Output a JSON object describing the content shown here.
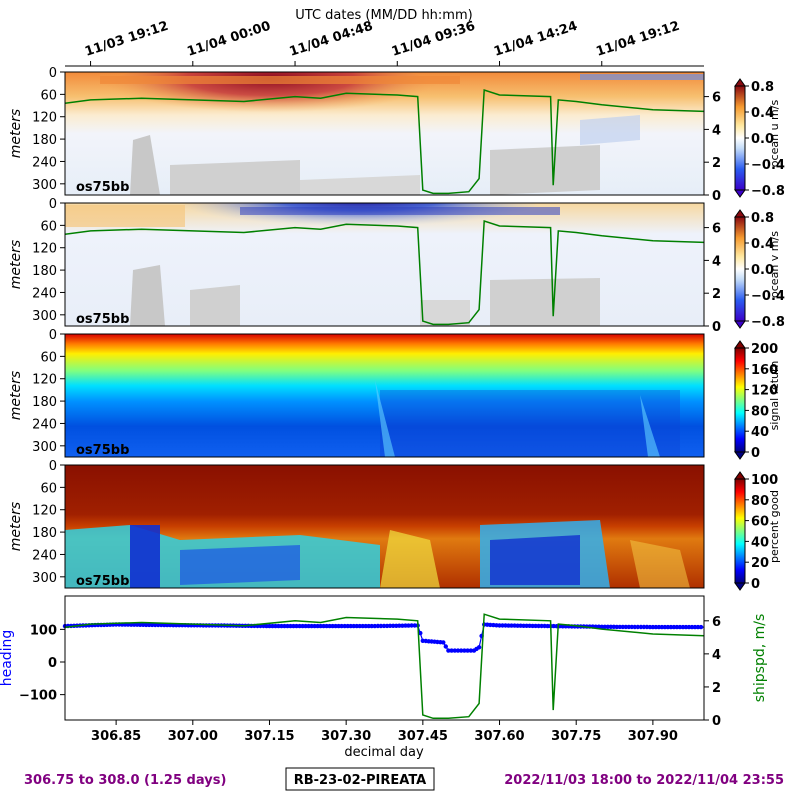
{
  "chart_data": {
    "top_axis_label": "UTC dates (MM/DD hh:mm)",
    "top_ticks": [
      {
        "x": 306.8,
        "label": "11/03 19:12"
      },
      {
        "x": 307.0,
        "label": "11/04 00:00"
      },
      {
        "x": 307.2,
        "label": "11/04 04:48"
      },
      {
        "x": 307.4,
        "label": "11/04 09:36"
      },
      {
        "x": 307.6,
        "label": "11/04 14:24"
      },
      {
        "x": 307.8,
        "label": "11/04 19:12"
      }
    ],
    "xlim": [
      306.75,
      308.0
    ],
    "x_ticks": [
      306.85,
      307.0,
      307.15,
      307.3,
      307.45,
      307.6,
      307.75,
      307.9
    ],
    "x_tick_labels": [
      "306.85",
      "307.00",
      "307.15",
      "307.30",
      "307.45",
      "307.60",
      "307.75",
      "307.90"
    ],
    "xlabel": "decimal day",
    "depth_ticks": [
      "0",
      "60",
      "120",
      "180",
      "240",
      "300"
    ],
    "depth_label": "meters",
    "panels": [
      {
        "type": "heatmap",
        "inset_label": "os75bb",
        "colorbar_label": "ocean u m/s",
        "colormap": "red-yellow-white-blue",
        "clim": [
          -0.8,
          0.8
        ],
        "colorbar_ticks": [
          "0.8",
          "0.4",
          "0.0",
          "−0.4",
          "−0.8"
        ],
        "overlay_axis_ticks": [
          "6",
          "4",
          "2",
          "0"
        ],
        "overlay_color": "#008000"
      },
      {
        "type": "heatmap",
        "inset_label": "os75bb",
        "colorbar_label": "ocean v m/s",
        "colormap": "red-yellow-white-blue",
        "clim": [
          -0.8,
          0.8
        ],
        "colorbar_ticks": [
          "0.8",
          "0.4",
          "0.0",
          "−0.4",
          "−0.8"
        ],
        "overlay_axis_ticks": [
          "6",
          "4",
          "2",
          "0"
        ],
        "overlay_color": "#008000"
      },
      {
        "type": "heatmap",
        "inset_label": "os75bb",
        "colorbar_label": "signal return",
        "colormap": "jet",
        "clim": [
          0,
          200
        ],
        "colorbar_ticks": [
          "200",
          "160",
          "120",
          "80",
          "40",
          "0"
        ]
      },
      {
        "type": "heatmap",
        "inset_label": "os75bb",
        "colorbar_label": "percent good",
        "colormap": "jet",
        "clim": [
          0,
          100
        ],
        "colorbar_ticks": [
          "100",
          "80",
          "60",
          "40",
          "20",
          "0"
        ]
      }
    ],
    "heading_panel": {
      "type": "line",
      "left_label": "heading",
      "left_color": "#0000ff",
      "left_ticks": [
        "100",
        "0",
        "−100"
      ],
      "right_label": "shipspd, m/s",
      "right_color": "#008000",
      "right_ticks": [
        "6",
        "4",
        "2",
        "0"
      ],
      "heading_series": [
        [
          306.75,
          110
        ],
        [
          306.85,
          115
        ],
        [
          306.95,
          113
        ],
        [
          307.05,
          112
        ],
        [
          307.15,
          110
        ],
        [
          307.25,
          110
        ],
        [
          307.35,
          110
        ],
        [
          307.44,
          112
        ],
        [
          307.45,
          65
        ],
        [
          307.49,
          60
        ],
        [
          307.5,
          35
        ],
        [
          307.55,
          35
        ],
        [
          307.56,
          45
        ],
        [
          307.57,
          115
        ],
        [
          307.6,
          112
        ],
        [
          307.7,
          110
        ],
        [
          307.8,
          108
        ],
        [
          307.9,
          107
        ],
        [
          308.0,
          107
        ]
      ],
      "speed_series": [
        [
          306.75,
          5.6
        ],
        [
          306.8,
          5.8
        ],
        [
          306.9,
          5.9
        ],
        [
          307.0,
          5.8
        ],
        [
          307.1,
          5.7
        ],
        [
          307.2,
          6.0
        ],
        [
          307.25,
          5.9
        ],
        [
          307.3,
          6.2
        ],
        [
          307.4,
          6.1
        ],
        [
          307.44,
          6.0
        ],
        [
          307.45,
          0.3
        ],
        [
          307.47,
          0.1
        ],
        [
          307.5,
          0.1
        ],
        [
          307.54,
          0.2
        ],
        [
          307.56,
          1.0
        ],
        [
          307.57,
          6.4
        ],
        [
          307.6,
          6.1
        ],
        [
          307.7,
          6.0
        ],
        [
          307.705,
          0.6
        ],
        [
          307.715,
          5.8
        ],
        [
          307.75,
          5.7
        ],
        [
          307.8,
          5.5
        ],
        [
          307.9,
          5.2
        ],
        [
          308.0,
          5.1
        ]
      ]
    },
    "footer": {
      "left": "306.75 to 308.0 (1.25 days)",
      "center": "RB-23-02-PIREATA",
      "right": "2022/11/03 18:00 to 2022/11/04 23:55",
      "left_color": "#800080",
      "right_color": "#800080"
    }
  }
}
